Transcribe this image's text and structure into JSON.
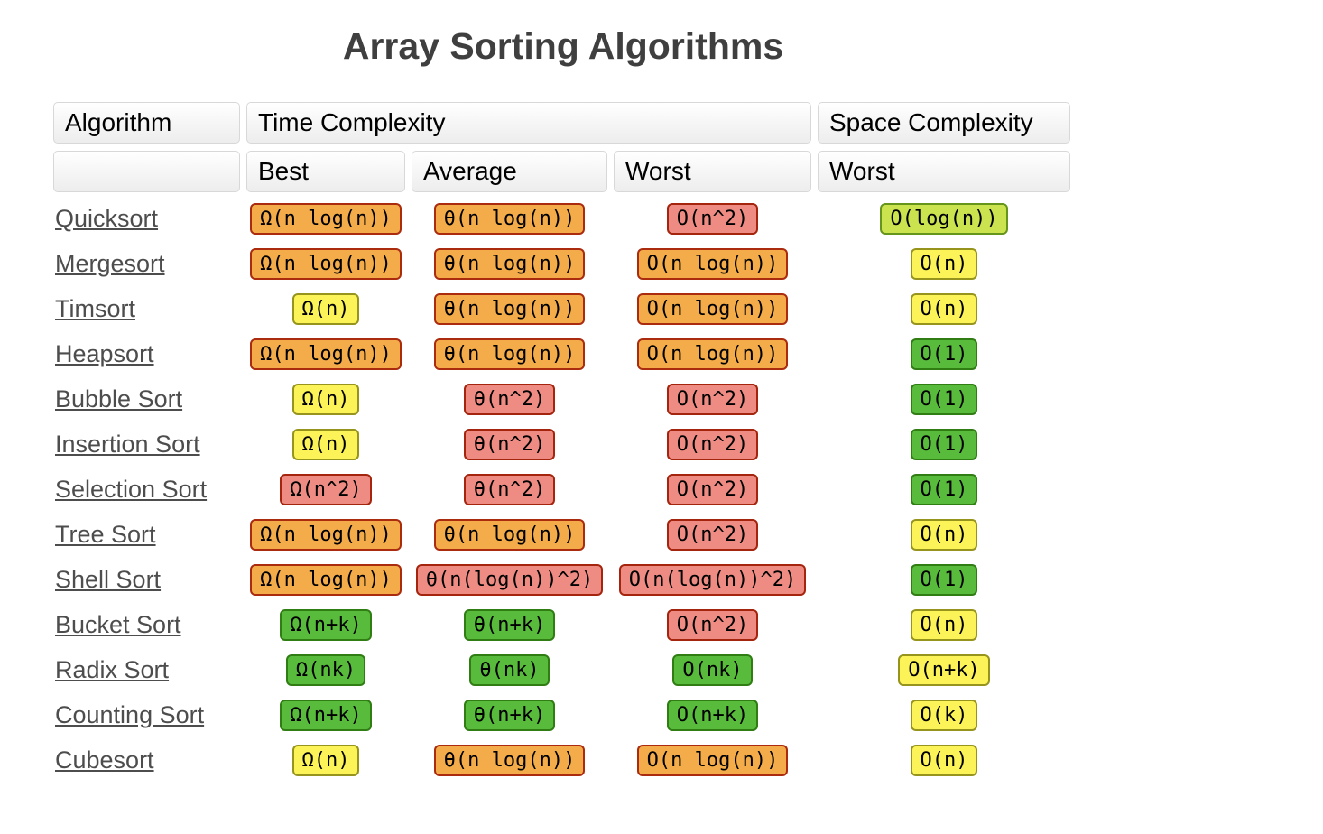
{
  "page": {
    "title": "Array Sorting Algorithms"
  },
  "table": {
    "headers": {
      "algorithm": "Algorithm",
      "time_complexity": "Time Complexity",
      "space_complexity": "Space Complexity",
      "best": "Best",
      "average": "Average",
      "worst": "Worst",
      "space_worst": "Worst"
    },
    "rows": [
      {
        "algorithm": "Quicksort",
        "best": {
          "text": "Ω(n log(n))",
          "color": "orange"
        },
        "average": {
          "text": "θ(n log(n))",
          "color": "orange"
        },
        "worst": {
          "text": "O(n^2)",
          "color": "red"
        },
        "space": {
          "text": "O(log(n))",
          "color": "yellowgreen"
        }
      },
      {
        "algorithm": "Mergesort",
        "best": {
          "text": "Ω(n log(n))",
          "color": "orange"
        },
        "average": {
          "text": "θ(n log(n))",
          "color": "orange"
        },
        "worst": {
          "text": "O(n log(n))",
          "color": "orange"
        },
        "space": {
          "text": "O(n)",
          "color": "yellow"
        }
      },
      {
        "algorithm": "Timsort",
        "best": {
          "text": "Ω(n)",
          "color": "yellow"
        },
        "average": {
          "text": "θ(n log(n))",
          "color": "orange"
        },
        "worst": {
          "text": "O(n log(n))",
          "color": "orange"
        },
        "space": {
          "text": "O(n)",
          "color": "yellow"
        }
      },
      {
        "algorithm": "Heapsort",
        "best": {
          "text": "Ω(n log(n))",
          "color": "orange"
        },
        "average": {
          "text": "θ(n log(n))",
          "color": "orange"
        },
        "worst": {
          "text": "O(n log(n))",
          "color": "orange"
        },
        "space": {
          "text": "O(1)",
          "color": "green"
        }
      },
      {
        "algorithm": "Bubble Sort",
        "best": {
          "text": "Ω(n)",
          "color": "yellow"
        },
        "average": {
          "text": "θ(n^2)",
          "color": "red"
        },
        "worst": {
          "text": "O(n^2)",
          "color": "red"
        },
        "space": {
          "text": "O(1)",
          "color": "green"
        }
      },
      {
        "algorithm": "Insertion Sort",
        "best": {
          "text": "Ω(n)",
          "color": "yellow"
        },
        "average": {
          "text": "θ(n^2)",
          "color": "red"
        },
        "worst": {
          "text": "O(n^2)",
          "color": "red"
        },
        "space": {
          "text": "O(1)",
          "color": "green"
        }
      },
      {
        "algorithm": "Selection Sort",
        "best": {
          "text": "Ω(n^2)",
          "color": "red"
        },
        "average": {
          "text": "θ(n^2)",
          "color": "red"
        },
        "worst": {
          "text": "O(n^2)",
          "color": "red"
        },
        "space": {
          "text": "O(1)",
          "color": "green"
        }
      },
      {
        "algorithm": "Tree Sort",
        "best": {
          "text": "Ω(n log(n))",
          "color": "orange"
        },
        "average": {
          "text": "θ(n log(n))",
          "color": "orange"
        },
        "worst": {
          "text": "O(n^2)",
          "color": "red"
        },
        "space": {
          "text": "O(n)",
          "color": "yellow"
        }
      },
      {
        "algorithm": "Shell Sort",
        "best": {
          "text": "Ω(n log(n))",
          "color": "orange"
        },
        "average": {
          "text": "θ(n(log(n))^2)",
          "color": "red"
        },
        "worst": {
          "text": "O(n(log(n))^2)",
          "color": "red"
        },
        "space": {
          "text": "O(1)",
          "color": "green"
        }
      },
      {
        "algorithm": "Bucket Sort",
        "best": {
          "text": "Ω(n+k)",
          "color": "green"
        },
        "average": {
          "text": "θ(n+k)",
          "color": "green"
        },
        "worst": {
          "text": "O(n^2)",
          "color": "red"
        },
        "space": {
          "text": "O(n)",
          "color": "yellow"
        }
      },
      {
        "algorithm": "Radix Sort",
        "best": {
          "text": "Ω(nk)",
          "color": "green"
        },
        "average": {
          "text": "θ(nk)",
          "color": "green"
        },
        "worst": {
          "text": "O(nk)",
          "color": "green"
        },
        "space": {
          "text": "O(n+k)",
          "color": "yellow"
        }
      },
      {
        "algorithm": "Counting Sort",
        "best": {
          "text": "Ω(n+k)",
          "color": "green"
        },
        "average": {
          "text": "θ(n+k)",
          "color": "green"
        },
        "worst": {
          "text": "O(n+k)",
          "color": "green"
        },
        "space": {
          "text": "O(k)",
          "color": "yellow"
        }
      },
      {
        "algorithm": "Cubesort",
        "best": {
          "text": "Ω(n)",
          "color": "yellow"
        },
        "average": {
          "text": "θ(n log(n))",
          "color": "orange"
        },
        "worst": {
          "text": "O(n log(n))",
          "color": "orange"
        },
        "space": {
          "text": "O(n)",
          "color": "yellow"
        }
      }
    ]
  },
  "colors": {
    "title": "#3f3f3f",
    "link": "#4d4d4d",
    "header_bg_top": "#ffffff",
    "header_bg_bottom": "#ededed",
    "header_border": "#d8d8d8",
    "orange_bg": "#f3ac49",
    "orange_border": "#ab2b0e",
    "red_bg": "#ee8c83",
    "red_border": "#a5240d",
    "yellow_bg": "#fbf357",
    "yellow_border": "#96941d",
    "green_bg": "#58bb3c",
    "green_border": "#2f7d13",
    "yellowgreen_bg": "#cae34f",
    "yellowgreen_border": "#66951b"
  }
}
